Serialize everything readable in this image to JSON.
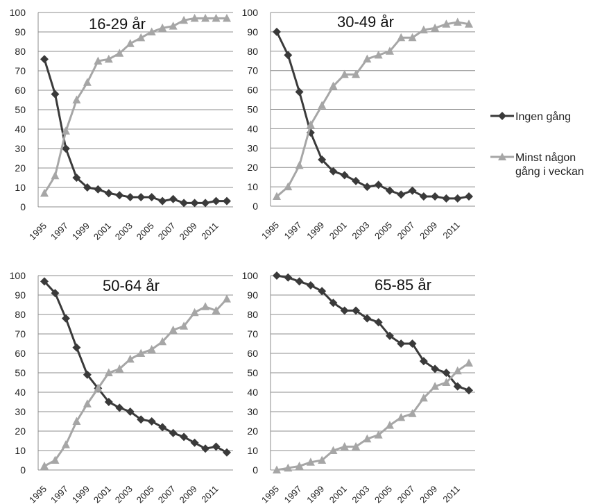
{
  "chart_data": [
    {
      "type": "line",
      "title": "16-29 år",
      "x": [
        1995,
        1996,
        1997,
        1998,
        1999,
        2000,
        2001,
        2002,
        2003,
        2004,
        2005,
        2006,
        2007,
        2008,
        2009,
        2010,
        2011,
        2012
      ],
      "x_tick_labels": [
        "1995",
        "1997",
        "1999",
        "2001",
        "2003",
        "2005",
        "2007",
        "2009",
        "2011"
      ],
      "ylim": [
        0,
        100
      ],
      "y_ticks": [
        "0",
        "10",
        "20",
        "30",
        "40",
        "50",
        "60",
        "70",
        "80",
        "90",
        "100"
      ],
      "grid": true,
      "series": [
        {
          "name": "Ingen gång",
          "values": [
            76,
            58,
            30,
            15,
            10,
            9,
            7,
            6,
            5,
            5,
            5,
            3,
            4,
            2,
            2,
            2,
            3,
            3
          ]
        },
        {
          "name": "Minst någon gång i veckan",
          "values": [
            7,
            16,
            39,
            55,
            64,
            75,
            76,
            79,
            84,
            87,
            90,
            92,
            93,
            96,
            97,
            97,
            97,
            97
          ]
        }
      ]
    },
    {
      "type": "line",
      "title": "30-49 år",
      "x": [
        1995,
        1996,
        1997,
        1998,
        1999,
        2000,
        2001,
        2002,
        2003,
        2004,
        2005,
        2006,
        2007,
        2008,
        2009,
        2010,
        2011,
        2012
      ],
      "x_tick_labels": [
        "1995",
        "1997",
        "1999",
        "2001",
        "2003",
        "2005",
        "2007",
        "2009",
        "2011"
      ],
      "ylim": [
        0,
        100
      ],
      "y_ticks": [
        "0",
        "10",
        "20",
        "30",
        "40",
        "50",
        "60",
        "70",
        "80",
        "90",
        "100"
      ],
      "grid": true,
      "series": [
        {
          "name": "Ingen gång",
          "values": [
            90,
            78,
            59,
            38,
            24,
            18,
            16,
            13,
            10,
            11,
            8,
            6,
            8,
            5,
            5,
            4,
            4,
            5
          ]
        },
        {
          "name": "Minst någon gång i veckan",
          "values": [
            5,
            10,
            21,
            42,
            52,
            62,
            68,
            68,
            76,
            78,
            80,
            87,
            87,
            91,
            92,
            94,
            95,
            94
          ]
        }
      ]
    },
    {
      "type": "line",
      "title": "50-64 år",
      "x": [
        1995,
        1996,
        1997,
        1998,
        1999,
        2000,
        2001,
        2002,
        2003,
        2004,
        2005,
        2006,
        2007,
        2008,
        2009,
        2010,
        2011,
        2012
      ],
      "x_tick_labels": [
        "1995",
        "1997",
        "1999",
        "2001",
        "2003",
        "2005",
        "2007",
        "2009",
        "2011"
      ],
      "ylim": [
        0,
        100
      ],
      "y_ticks": [
        "0",
        "10",
        "20",
        "30",
        "40",
        "50",
        "60",
        "70",
        "80",
        "90",
        "100"
      ],
      "grid": true,
      "series": [
        {
          "name": "Ingen gång",
          "values": [
            97,
            91,
            78,
            63,
            49,
            42,
            35,
            32,
            30,
            26,
            25,
            22,
            19,
            17,
            14,
            11,
            12,
            9
          ]
        },
        {
          "name": "Minst någon gång i veckan",
          "values": [
            2,
            5,
            13,
            25,
            34,
            42,
            50,
            52,
            57,
            60,
            62,
            66,
            72,
            74,
            81,
            84,
            82,
            88
          ]
        }
      ]
    },
    {
      "type": "line",
      "title": "65-85 år",
      "x": [
        1995,
        1996,
        1997,
        1998,
        1999,
        2000,
        2001,
        2002,
        2003,
        2004,
        2005,
        2006,
        2007,
        2008,
        2009,
        2010,
        2011,
        2012
      ],
      "x_tick_labels": [
        "1995",
        "1997",
        "1999",
        "2001",
        "2003",
        "2005",
        "2007",
        "2009",
        "2011"
      ],
      "ylim": [
        0,
        100
      ],
      "y_ticks": [
        "0",
        "10",
        "20",
        "30",
        "40",
        "50",
        "60",
        "70",
        "80",
        "90",
        "100"
      ],
      "grid": true,
      "series": [
        {
          "name": "Ingen gång",
          "values": [
            100,
            99,
            97,
            95,
            92,
            86,
            82,
            82,
            78,
            76,
            69,
            65,
            65,
            56,
            52,
            50,
            43,
            41
          ]
        },
        {
          "name": "Minst någon gång i veckan",
          "values": [
            0,
            1,
            2,
            4,
            5,
            10,
            12,
            12,
            16,
            18,
            23,
            27,
            29,
            37,
            43,
            45,
            51,
            55
          ]
        }
      ]
    }
  ],
  "legend": {
    "placement": "right",
    "items": [
      {
        "label": "Ingen gång",
        "color": "#3a3a3a",
        "marker": "diamond"
      },
      {
        "label": "Minst någon gång i veckan",
        "color": "#a6a6a6",
        "marker": "triangle"
      }
    ]
  },
  "colors": {
    "series_dark": "#3a3a3a",
    "series_light": "#a6a6a6",
    "grid": "#8c8c8c",
    "axis_text": "#222222"
  }
}
